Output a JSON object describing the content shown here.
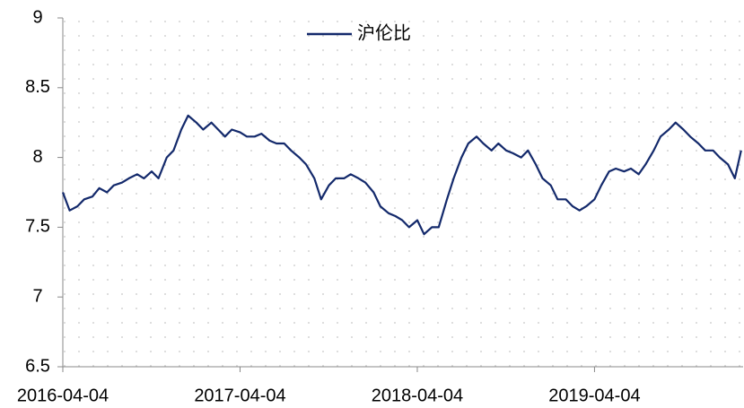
{
  "chart_data": {
    "type": "line",
    "x": [
      "2016-04-04",
      "2016-04-18",
      "2016-05-04",
      "2016-05-18",
      "2016-06-04",
      "2016-06-18",
      "2016-07-04",
      "2016-07-18",
      "2016-08-04",
      "2016-08-18",
      "2016-09-04",
      "2016-09-18",
      "2016-10-04",
      "2016-10-18",
      "2016-11-04",
      "2016-11-18",
      "2016-12-04",
      "2016-12-18",
      "2017-01-04",
      "2017-01-18",
      "2017-02-04",
      "2017-02-18",
      "2017-03-04",
      "2017-03-18",
      "2017-04-04",
      "2017-04-18",
      "2017-05-04",
      "2017-05-18",
      "2017-06-04",
      "2017-06-18",
      "2017-07-04",
      "2017-07-18",
      "2017-08-04",
      "2017-08-18",
      "2017-09-04",
      "2017-09-18",
      "2017-10-04",
      "2017-10-18",
      "2017-11-04",
      "2017-11-18",
      "2017-12-04",
      "2017-12-18",
      "2018-01-04",
      "2018-01-18",
      "2018-02-04",
      "2018-02-18",
      "2018-03-04",
      "2018-03-18",
      "2018-04-04",
      "2018-04-18",
      "2018-05-04",
      "2018-05-18",
      "2018-06-04",
      "2018-06-18",
      "2018-07-04",
      "2018-07-18",
      "2018-08-04",
      "2018-08-18",
      "2018-09-04",
      "2018-09-18",
      "2018-10-04",
      "2018-10-18",
      "2018-11-04",
      "2018-11-18",
      "2018-12-04",
      "2018-12-18",
      "2019-01-04",
      "2019-01-18",
      "2019-02-04",
      "2019-02-18",
      "2019-03-04",
      "2019-03-18",
      "2019-04-04",
      "2019-04-18",
      "2019-05-04",
      "2019-05-18",
      "2019-06-04",
      "2019-06-18",
      "2019-07-04",
      "2019-07-18",
      "2019-08-04",
      "2019-08-18",
      "2019-09-04",
      "2019-09-18",
      "2019-10-04",
      "2019-10-18",
      "2019-11-04",
      "2019-11-18",
      "2019-12-04",
      "2019-12-18",
      "2020-01-04",
      "2020-01-18",
      "2020-01-31"
    ],
    "series": [
      {
        "name": "沪伦比",
        "color": "#13296b",
        "values": [
          7.75,
          7.62,
          7.65,
          7.7,
          7.72,
          7.78,
          7.75,
          7.8,
          7.82,
          7.85,
          7.88,
          7.85,
          7.9,
          7.85,
          8.0,
          8.05,
          8.2,
          8.3,
          8.25,
          8.2,
          8.25,
          8.2,
          8.15,
          8.2,
          8.18,
          8.15,
          8.15,
          8.17,
          8.12,
          8.1,
          8.1,
          8.05,
          8.0,
          7.95,
          7.85,
          7.7,
          7.8,
          7.85,
          7.85,
          7.88,
          7.85,
          7.82,
          7.75,
          7.65,
          7.6,
          7.58,
          7.55,
          7.5,
          7.55,
          7.45,
          7.5,
          7.5,
          7.7,
          7.85,
          8.0,
          8.1,
          8.15,
          8.1,
          8.05,
          8.1,
          8.05,
          8.03,
          8.0,
          8.05,
          7.95,
          7.85,
          7.8,
          7.7,
          7.7,
          7.65,
          7.62,
          7.65,
          7.7,
          7.8,
          7.9,
          7.92,
          7.9,
          7.92,
          7.88,
          7.95,
          8.05,
          8.15,
          8.2,
          8.25,
          8.2,
          8.15,
          8.1,
          8.05,
          8.05,
          8.0,
          7.95,
          7.85,
          8.05
        ]
      }
    ],
    "xlim": [
      "2016-04-04",
      "2020-02-04"
    ],
    "xticks": [
      "2016-04-04",
      "2017-04-04",
      "2018-04-04",
      "2019-04-04"
    ],
    "ylim": [
      6.5,
      9
    ],
    "yticks": [
      6.5,
      7,
      7.5,
      8,
      8.5,
      9
    ]
  }
}
